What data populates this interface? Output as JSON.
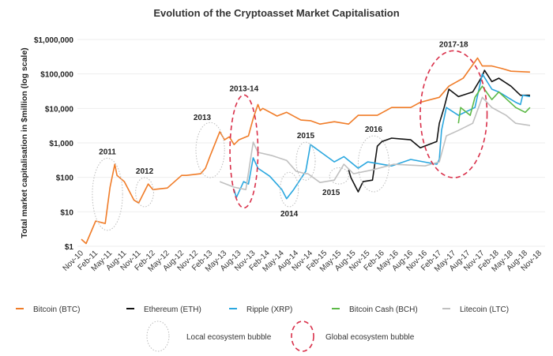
{
  "chart_data": {
    "type": "line",
    "title": "Evolution of the Cryptoasset Market Capitalisation",
    "ylabel": "Total market capitalisation in $million (log scale)",
    "xlabel": "",
    "yscale": "log",
    "ylim": [
      1,
      1000000
    ],
    "xlim": [
      "2010-11",
      "2018-11"
    ],
    "grid": true,
    "y_ticks": [
      1,
      10,
      100,
      1000,
      10000,
      100000,
      1000000
    ],
    "y_tick_labels": [
      "$1",
      "$10",
      "$100",
      "$1,000",
      "$10,000",
      "$100,000",
      "$1,000,000"
    ],
    "x_tick_labels": [
      "Nov-10",
      "Feb-11",
      "May-11",
      "Aug-11",
      "Nov-11",
      "Feb-12",
      "May-12",
      "Aug-12",
      "Nov-12",
      "Feb-13",
      "May-13",
      "Aug-13",
      "Nov-13",
      "Feb-14",
      "May-14",
      "Aug-14",
      "Nov-14",
      "Feb-15",
      "May-15",
      "Aug-15",
      "Nov-15",
      "Feb-16",
      "May-16",
      "Aug-16",
      "Nov-16",
      "Feb-17",
      "May-17",
      "Aug-17",
      "Nov-17",
      "Feb-18",
      "May-18",
      "Aug-18",
      "Nov-18"
    ],
    "legend_position": "bottom",
    "series": [
      {
        "name": "Bitcoin (BTC)",
        "color": "#f07c28",
        "points": [
          [
            "2010-11-01",
            1.6
          ],
          [
            "2010-12-01",
            1.2
          ],
          [
            "2011-02-01",
            5.4
          ],
          [
            "2011-04-01",
            4.6
          ],
          [
            "2011-05-01",
            52
          ],
          [
            "2011-06-01",
            240
          ],
          [
            "2011-06-15",
            114
          ],
          [
            "2011-08-01",
            75
          ],
          [
            "2011-10-01",
            22
          ],
          [
            "2011-11-01",
            18
          ],
          [
            "2012-01-01",
            64
          ],
          [
            "2012-02-01",
            44
          ],
          [
            "2012-05-01",
            49
          ],
          [
            "2012-08-01",
            114
          ],
          [
            "2012-09-01",
            114
          ],
          [
            "2012-12-01",
            127
          ],
          [
            "2013-01-01",
            184
          ],
          [
            "2013-02-01",
            425
          ],
          [
            "2013-04-01",
            2100
          ],
          [
            "2013-05-01",
            1230
          ],
          [
            "2013-06-01",
            1500
          ],
          [
            "2013-07-01",
            890
          ],
          [
            "2013-08-01",
            1230
          ],
          [
            "2013-10-01",
            1600
          ],
          [
            "2013-11-01",
            5100
          ],
          [
            "2013-12-01",
            13000
          ],
          [
            "2013-12-15",
            8600
          ],
          [
            "2014-01-01",
            10000
          ],
          [
            "2014-04-01",
            6000
          ],
          [
            "2014-06-01",
            7700
          ],
          [
            "2014-09-01",
            4600
          ],
          [
            "2014-11-01",
            4400
          ],
          [
            "2015-01-01",
            3500
          ],
          [
            "2015-04-01",
            4100
          ],
          [
            "2015-07-01",
            3500
          ],
          [
            "2015-09-01",
            6300
          ],
          [
            "2016-01-01",
            6300
          ],
          [
            "2016-04-01",
            10600
          ],
          [
            "2016-08-01",
            10600
          ],
          [
            "2016-10-01",
            15000
          ],
          [
            "2017-02-01",
            21000
          ],
          [
            "2017-04-01",
            44000
          ],
          [
            "2017-07-01",
            75000
          ],
          [
            "2017-10-01",
            290000
          ],
          [
            "2017-11-01",
            170000
          ],
          [
            "2018-01-01",
            170000
          ],
          [
            "2018-03-01",
            145000
          ],
          [
            "2018-05-01",
            120000
          ],
          [
            "2018-09-01",
            113000
          ]
        ]
      },
      {
        "name": "Ethereum (ETH)",
        "color": "#111111",
        "points": [
          [
            "2015-07-01",
            165
          ],
          [
            "2015-07-15",
            98
          ],
          [
            "2015-09-01",
            38
          ],
          [
            "2015-10-01",
            75
          ],
          [
            "2015-12-01",
            83
          ],
          [
            "2016-01-01",
            800
          ],
          [
            "2016-02-01",
            1100
          ],
          [
            "2016-04-01",
            1370
          ],
          [
            "2016-08-01",
            1230
          ],
          [
            "2016-10-01",
            720
          ],
          [
            "2017-01-15",
            1100
          ],
          [
            "2017-02-01",
            3700
          ],
          [
            "2017-03-01",
            10600
          ],
          [
            "2017-04-01",
            36000
          ],
          [
            "2017-06-01",
            22000
          ],
          [
            "2017-09-01",
            30000
          ],
          [
            "2017-11-01",
            87000
          ],
          [
            "2017-11-15",
            127000
          ],
          [
            "2018-01-01",
            60000
          ],
          [
            "2018-02-15",
            75000
          ],
          [
            "2018-05-01",
            44000
          ],
          [
            "2018-07-01",
            24000
          ],
          [
            "2018-09-01",
            24000
          ]
        ]
      },
      {
        "name": "Ripple (XRP)",
        "color": "#2aa7df",
        "points": [
          [
            "2013-07-01",
            44
          ],
          [
            "2013-07-15",
            26
          ],
          [
            "2013-09-01",
            75
          ],
          [
            "2013-10-01",
            64
          ],
          [
            "2013-11-01",
            370
          ],
          [
            "2013-12-01",
            184
          ],
          [
            "2014-02-15",
            108
          ],
          [
            "2014-05-01",
            44
          ],
          [
            "2014-06-01",
            24
          ],
          [
            "2014-07-15",
            44
          ],
          [
            "2014-10-01",
            150
          ],
          [
            "2014-11-01",
            890
          ],
          [
            "2014-11-15",
            800
          ],
          [
            "2015-01-01",
            560
          ],
          [
            "2015-04-01",
            280
          ],
          [
            "2015-06-01",
            400
          ],
          [
            "2015-09-01",
            184
          ],
          [
            "2015-11-01",
            280
          ],
          [
            "2016-04-01",
            215
          ],
          [
            "2016-08-01",
            330
          ],
          [
            "2017-01-15",
            240
          ],
          [
            "2017-02-01",
            330
          ],
          [
            "2017-02-15",
            2300
          ],
          [
            "2017-03-15",
            10600
          ],
          [
            "2017-06-01",
            6300
          ],
          [
            "2017-09-15",
            10600
          ],
          [
            "2017-11-01",
            100000
          ],
          [
            "2018-01-01",
            36000
          ],
          [
            "2018-02-15",
            30000
          ],
          [
            "2018-06-01",
            15000
          ],
          [
            "2018-07-01",
            13000
          ],
          [
            "2018-07-15",
            24000
          ],
          [
            "2018-09-01",
            22000
          ]
        ]
      },
      {
        "name": "Bitcoin Cash (BCH)",
        "color": "#5cb946",
        "points": [
          [
            "2017-06-01",
            3700
          ],
          [
            "2017-06-15",
            10600
          ],
          [
            "2017-08-15",
            6300
          ],
          [
            "2017-09-15",
            21000
          ],
          [
            "2017-11-01",
            44000
          ],
          [
            "2018-01-01",
            18000
          ],
          [
            "2018-02-15",
            30000
          ],
          [
            "2018-06-01",
            10600
          ],
          [
            "2018-08-01",
            7700
          ],
          [
            "2018-09-01",
            10600
          ]
        ]
      },
      {
        "name": "Litecoin (LTC)",
        "color": "#c0c0c0",
        "points": [
          [
            "2013-04-01",
            75
          ],
          [
            "2013-07-01",
            52
          ],
          [
            "2013-09-15",
            44
          ],
          [
            "2013-11-01",
            1050
          ],
          [
            "2013-12-01",
            530
          ],
          [
            "2014-03-01",
            425
          ],
          [
            "2014-06-01",
            310
          ],
          [
            "2014-08-01",
            150
          ],
          [
            "2014-10-01",
            127
          ],
          [
            "2014-10-15",
            127
          ],
          [
            "2015-01-01",
            71
          ],
          [
            "2015-04-01",
            83
          ],
          [
            "2015-06-01",
            240
          ],
          [
            "2015-08-01",
            127
          ],
          [
            "2015-12-01",
            165
          ],
          [
            "2016-04-15",
            240
          ],
          [
            "2016-11-01",
            215
          ],
          [
            "2017-02-01",
            280
          ],
          [
            "2017-03-15",
            1600
          ],
          [
            "2017-06-01",
            2300
          ],
          [
            "2017-09-01",
            3700
          ],
          [
            "2017-11-01",
            21000
          ],
          [
            "2018-01-01",
            10600
          ],
          [
            "2018-04-01",
            6300
          ],
          [
            "2018-06-01",
            3700
          ],
          [
            "2018-09-01",
            3200
          ]
        ]
      }
    ],
    "annotations": [
      {
        "label": "2011",
        "type": "local",
        "x_range": [
          "2011-01-10",
          "2011-07-20"
        ],
        "y_range": [
          2.9,
          360
        ],
        "label_pos": "above"
      },
      {
        "label": "2012",
        "type": "local",
        "x_range": [
          "2011-10-12",
          "2012-02-05"
        ],
        "y_range": [
          14,
          98
        ],
        "label_pos": "above"
      },
      {
        "label": "2013",
        "type": "local",
        "x_range": [
          "2012-11-01",
          "2013-05-01"
        ],
        "y_range": [
          98,
          3900
        ],
        "label_pos": "above-left"
      },
      {
        "label": "2013-14",
        "type": "global",
        "x_range": [
          "2013-06-05",
          "2013-12-01"
        ],
        "y_range": [
          13,
          24500
        ],
        "label_pos": "above"
      },
      {
        "label": "2014",
        "type": "local",
        "x_range": [
          "2014-04-20",
          "2014-08-15"
        ],
        "y_range": [
          14,
          140
        ],
        "label_pos": "below"
      },
      {
        "label": "2015",
        "type": "local",
        "x_range": [
          "2014-08-01",
          "2014-12-01"
        ],
        "y_range": [
          83,
          1050
        ],
        "label_pos": "above"
      },
      {
        "label": "2015",
        "type": "local",
        "x_range": [
          "2015-03-01",
          "2015-07-01"
        ],
        "y_range": [
          64,
          190
        ],
        "label_pos": "below-left"
      },
      {
        "label": "2016",
        "type": "local",
        "x_range": [
          "2015-09-01",
          "2016-03-15"
        ],
        "y_range": [
          38,
          1600
        ],
        "label_pos": "above"
      },
      {
        "label": "2017-18",
        "type": "global",
        "x_range": [
          "2016-10-01",
          "2017-12-01"
        ],
        "y_range": [
          98,
          470000
        ],
        "label_pos": "above"
      }
    ],
    "bubble_legend": [
      {
        "type": "local",
        "label": "Local ecosystem bubble",
        "color": "#bbbbbb"
      },
      {
        "type": "global",
        "label": "Global ecosystem bubble",
        "color": "#d9304a"
      }
    ]
  }
}
